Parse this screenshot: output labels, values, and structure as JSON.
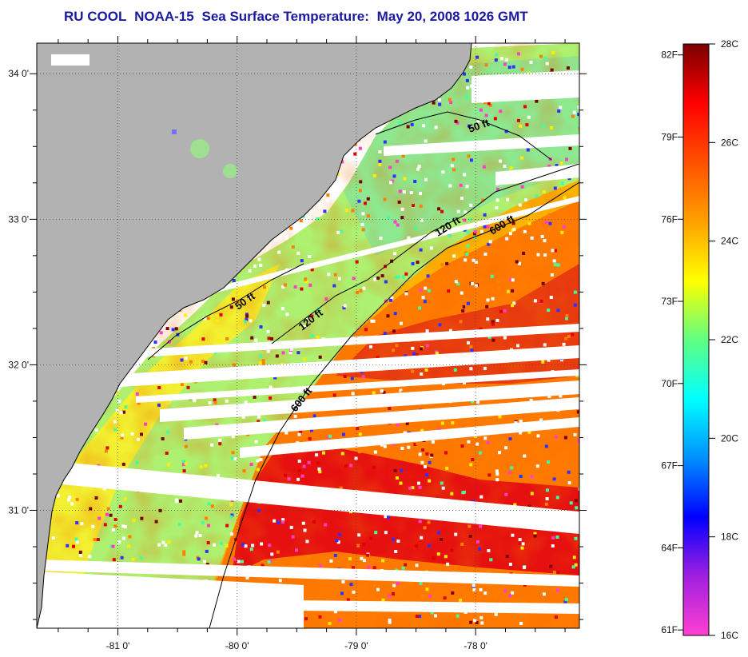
{
  "title": {
    "source": "RU COOL",
    "satellite": "NOAA-15",
    "product": "Sea Surface Temperature:",
    "date": "May 20, 2008 1026 GMT"
  },
  "axes": {
    "x_ticks": [
      {
        "lon": -81,
        "label": "-81 0'"
      },
      {
        "lon": -80,
        "label": "-80 0'"
      },
      {
        "lon": -79,
        "label": "-79 0'"
      },
      {
        "lon": -78,
        "label": "-78 0'"
      }
    ],
    "y_ticks": [
      {
        "lat": 34,
        "label": "34 0'"
      },
      {
        "lat": 33,
        "label": "33 0'"
      },
      {
        "lat": 32,
        "label": "32 0'"
      },
      {
        "lat": 31,
        "label": "31 0'"
      }
    ],
    "lon_range": [
      -81.68,
      -77.13
    ],
    "lat_range": [
      30.19,
      34.21
    ]
  },
  "contours": [
    {
      "name": "50 ft",
      "label": "50 ft",
      "segment": "inner-north"
    },
    {
      "name": "50 ft",
      "label": "50 ft",
      "segment": "inner-south"
    },
    {
      "name": "120 ft",
      "label": "120 ft",
      "segment": "mid-north"
    },
    {
      "name": "120 ft",
      "label": "120 ft",
      "segment": "mid-south"
    },
    {
      "name": "600 ft",
      "label": "600 ft",
      "segment": "shelf-north"
    },
    {
      "name": "600 ft",
      "label": "600 ft",
      "segment": "shelf-south"
    }
  ],
  "colorbar": {
    "celsius_labels": [
      "28C",
      "26C",
      "24C",
      "22C",
      "20C",
      "18C",
      "16C"
    ],
    "fahrenheit_labels": [
      "82F",
      "79F",
      "76F",
      "73F",
      "70F",
      "67F",
      "64F",
      "61F"
    ],
    "range_c": [
      16,
      28
    ],
    "colors": [
      "#ff3fd0",
      "#a020e0",
      "#0000ff",
      "#0090ff",
      "#00ffff",
      "#60ff80",
      "#ffff00",
      "#ffa000",
      "#ff5000",
      "#ff0000",
      "#7a0000"
    ]
  },
  "colors": {
    "land": "#b2b2b2",
    "title": "#1a1aa0",
    "gap": "#ffffff"
  }
}
